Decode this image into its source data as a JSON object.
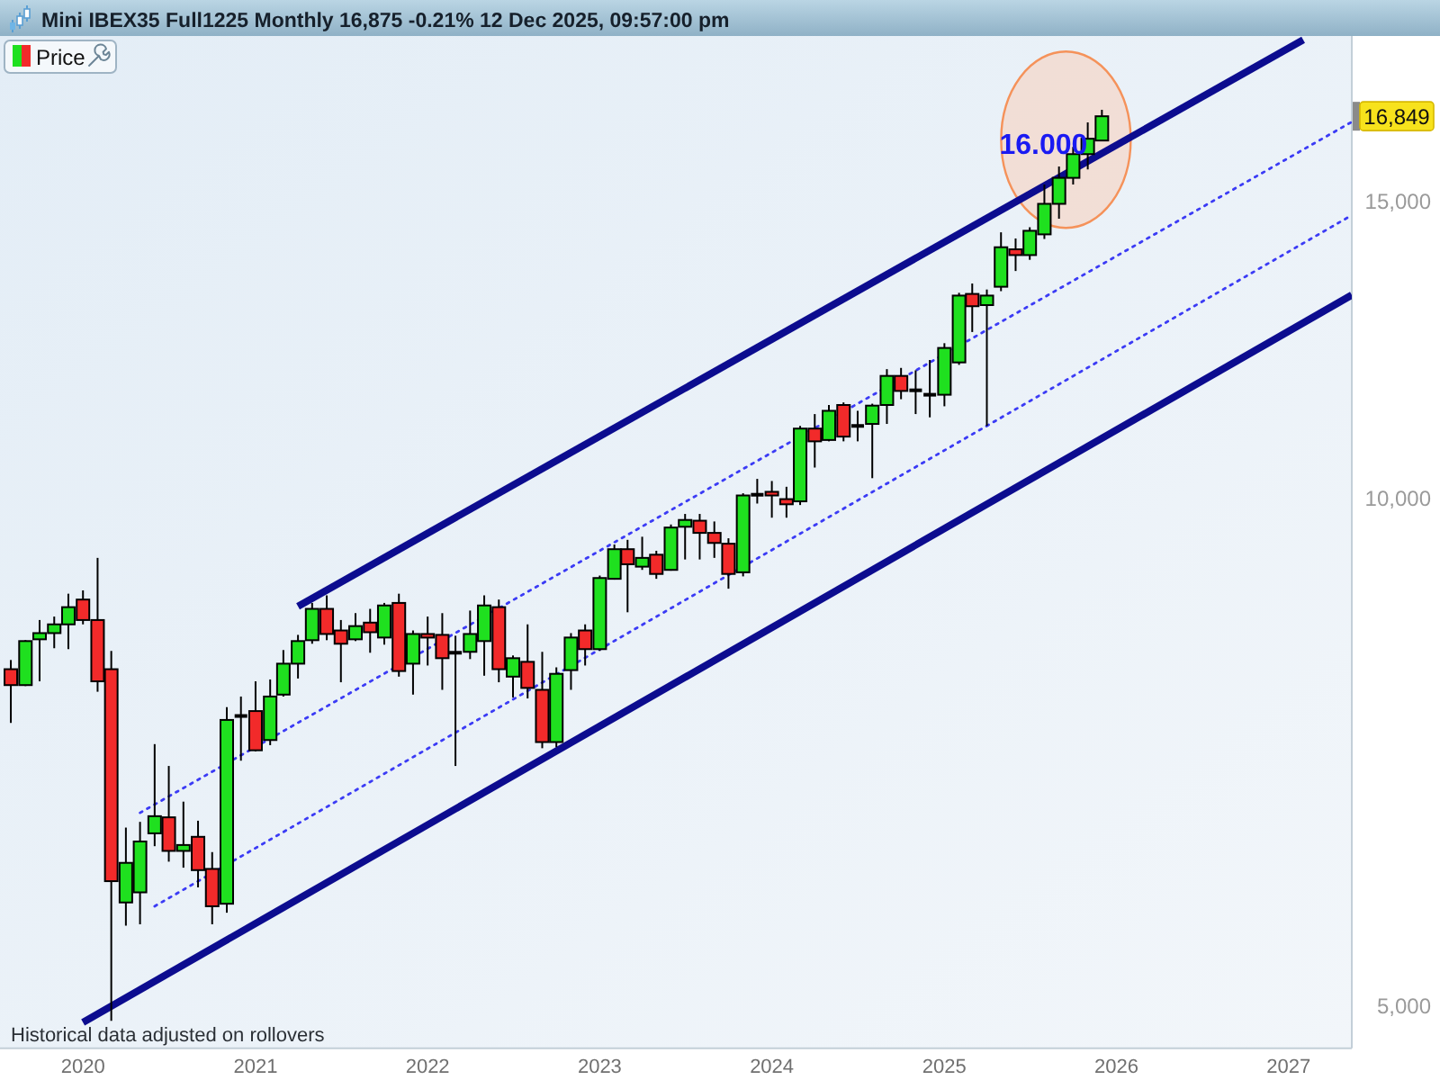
{
  "chart_data": {
    "type": "candlestick",
    "title": "Mini IBEX35 Full1225 Monthly 16,875 -0.21% 12 Dec 2025, 09:57:00 pm",
    "x": [
      "2019-08",
      "2019-09",
      "2019-10",
      "2019-11",
      "2019-12",
      "2020-01",
      "2020-02",
      "2020-03",
      "2020-04",
      "2020-05",
      "2020-06",
      "2020-07",
      "2020-08",
      "2020-09",
      "2020-10",
      "2020-11",
      "2020-12",
      "2021-01",
      "2021-02",
      "2021-03",
      "2021-04",
      "2021-05",
      "2021-06",
      "2021-07",
      "2021-08",
      "2021-09",
      "2021-10",
      "2021-11",
      "2021-12",
      "2022-01",
      "2022-02",
      "2022-03",
      "2022-04",
      "2022-05",
      "2022-06",
      "2022-07",
      "2022-08",
      "2022-09",
      "2022-10",
      "2022-11",
      "2022-12",
      "2023-01",
      "2023-02",
      "2023-03",
      "2023-04",
      "2023-05",
      "2023-06",
      "2023-07",
      "2023-08",
      "2023-09",
      "2023-10",
      "2023-11",
      "2023-12",
      "2024-01",
      "2024-02",
      "2024-03",
      "2024-04",
      "2024-05",
      "2024-06",
      "2024-07",
      "2024-08",
      "2024-09",
      "2024-10",
      "2024-11",
      "2024-12",
      "2025-01",
      "2025-02",
      "2025-03",
      "2025-04",
      "2025-05",
      "2025-06",
      "2025-07",
      "2025-08",
      "2025-09",
      "2025-10",
      "2025-11",
      "2025-12"
    ],
    "series": [
      {
        "name": "Price",
        "ohlc": [
          [
            7920,
            8020,
            7360,
            7750
          ],
          [
            7750,
            8240,
            7740,
            8230
          ],
          [
            8250,
            8470,
            7790,
            8320
          ],
          [
            8320,
            8510,
            8150,
            8420
          ],
          [
            8420,
            8780,
            8140,
            8620
          ],
          [
            8710,
            8820,
            8420,
            8470
          ],
          [
            8470,
            9220,
            7680,
            7790
          ],
          [
            7920,
            8120,
            4900,
            5930
          ],
          [
            5760,
            6380,
            5580,
            6080
          ],
          [
            5840,
            6430,
            5590,
            6260
          ],
          [
            6330,
            7150,
            6220,
            6480
          ],
          [
            6470,
            6940,
            6090,
            6180
          ],
          [
            6180,
            6610,
            6040,
            6230
          ],
          [
            6300,
            6440,
            5880,
            6020
          ],
          [
            6030,
            6170,
            5590,
            5730
          ],
          [
            5750,
            7520,
            5680,
            7390
          ],
          [
            7430,
            7630,
            6990,
            7430
          ],
          [
            7480,
            7790,
            7080,
            7090
          ],
          [
            7190,
            7810,
            7140,
            7630
          ],
          [
            7650,
            8130,
            7630,
            7980
          ],
          [
            7980,
            8300,
            7820,
            8230
          ],
          [
            8240,
            8670,
            8200,
            8600
          ],
          [
            8600,
            8760,
            8240,
            8310
          ],
          [
            8350,
            8470,
            7780,
            8200
          ],
          [
            8250,
            8550,
            8230,
            8400
          ],
          [
            8440,
            8600,
            8100,
            8330
          ],
          [
            8270,
            8670,
            8190,
            8640
          ],
          [
            8670,
            8780,
            7840,
            7900
          ],
          [
            7980,
            8350,
            7650,
            8310
          ],
          [
            8310,
            8510,
            7960,
            8270
          ],
          [
            8300,
            8550,
            7700,
            8040
          ],
          [
            8100,
            8290,
            6940,
            8100
          ],
          [
            8110,
            8580,
            8030,
            8310
          ],
          [
            8230,
            8760,
            7850,
            8640
          ],
          [
            8620,
            8710,
            7780,
            7920
          ],
          [
            7840,
            8070,
            7620,
            8040
          ],
          [
            8000,
            8420,
            7610,
            7720
          ],
          [
            7700,
            8110,
            7110,
            7170
          ],
          [
            7170,
            7940,
            7120,
            7870
          ],
          [
            7910,
            8320,
            7700,
            8270
          ],
          [
            8350,
            8420,
            7960,
            8140
          ],
          [
            8140,
            9000,
            8120,
            8970
          ],
          [
            8960,
            9390,
            8950,
            9330
          ],
          [
            9330,
            9450,
            8560,
            9140
          ],
          [
            9110,
            9490,
            9070,
            9220
          ],
          [
            9260,
            9310,
            8960,
            9020
          ],
          [
            9070,
            9650,
            9060,
            9610
          ],
          [
            9620,
            9790,
            9200,
            9710
          ],
          [
            9700,
            9790,
            9200,
            9540
          ],
          [
            9540,
            9690,
            9220,
            9410
          ],
          [
            9400,
            9470,
            8840,
            9020
          ],
          [
            9040,
            10070,
            8990,
            10040
          ],
          [
            10050,
            10270,
            9930,
            10050
          ],
          [
            10090,
            10240,
            9740,
            10040
          ],
          [
            9990,
            10160,
            9740,
            9920
          ],
          [
            9960,
            11040,
            9910,
            11000
          ],
          [
            11000,
            11220,
            10430,
            10810
          ],
          [
            10830,
            11360,
            10810,
            11270
          ],
          [
            11360,
            11400,
            10810,
            10880
          ],
          [
            11040,
            11270,
            10810,
            11040
          ],
          [
            11070,
            11380,
            10280,
            11350
          ],
          [
            11360,
            11930,
            11070,
            11820
          ],
          [
            11820,
            11950,
            11450,
            11580
          ],
          [
            11590,
            11910,
            11220,
            11590
          ],
          [
            11520,
            12080,
            11170,
            11520
          ],
          [
            11520,
            12360,
            11340,
            12280
          ],
          [
            12040,
            13240,
            12000,
            13190
          ],
          [
            13220,
            13410,
            12550,
            13000
          ],
          [
            13020,
            13300,
            11040,
            13190
          ],
          [
            13350,
            14380,
            13270,
            14090
          ],
          [
            14050,
            14260,
            13640,
            13940
          ],
          [
            13940,
            14480,
            13850,
            14410
          ],
          [
            14340,
            15350,
            14250,
            14950
          ],
          [
            14950,
            15730,
            14650,
            15490
          ],
          [
            15490,
            16160,
            15350,
            16000
          ],
          [
            16000,
            16710,
            15670,
            16340
          ],
          [
            16300,
            17000,
            16300,
            16849
          ]
        ],
        "colors": [
          "#f22a2a",
          "#1fe01f",
          "#1fe01f",
          "#1fe01f",
          "#1fe01f",
          "#f22a2a",
          "#f22a2a",
          "#f22a2a",
          "#1fe01f",
          "#1fe01f",
          "#1fe01f",
          "#f22a2a",
          "#1fe01f",
          "#f22a2a",
          "#f22a2a",
          "#1fe01f",
          "#000000",
          "#f22a2a",
          "#1fe01f",
          "#1fe01f",
          "#1fe01f",
          "#1fe01f",
          "#f22a2a",
          "#f22a2a",
          "#1fe01f",
          "#f22a2a",
          "#1fe01f",
          "#f22a2a",
          "#1fe01f",
          "#f22a2a",
          "#f22a2a",
          "#000000",
          "#1fe01f",
          "#1fe01f",
          "#f22a2a",
          "#1fe01f",
          "#f22a2a",
          "#f22a2a",
          "#1fe01f",
          "#1fe01f",
          "#f22a2a",
          "#1fe01f",
          "#1fe01f",
          "#f22a2a",
          "#1fe01f",
          "#f22a2a",
          "#1fe01f",
          "#1fe01f",
          "#f22a2a",
          "#f22a2a",
          "#f22a2a",
          "#1fe01f",
          "#000000",
          "#f22a2a",
          "#f22a2a",
          "#1fe01f",
          "#f22a2a",
          "#1fe01f",
          "#f22a2a",
          "#000000",
          "#1fe01f",
          "#1fe01f",
          "#f22a2a",
          "#000000",
          "#000000",
          "#1fe01f",
          "#1fe01f",
          "#f22a2a",
          "#1fe01f",
          "#1fe01f",
          "#f22a2a",
          "#1fe01f",
          "#1fe01f",
          "#1fe01f",
          "#1fe01f",
          "#1fe01f",
          "#1fe01f"
        ]
      },
      {
        "type": "line",
        "x": [
          "2021-04",
          "2027-02"
        ],
        "values": [
          8630,
          18700
        ],
        "color": "#0c0c8f",
        "line_style": "solid"
      },
      {
        "type": "line",
        "x": [
          "2020-01",
          "2027-05-15"
        ],
        "values": [
          4890,
          13200
        ],
        "color": "#0c0c8f",
        "line_style": "solid"
      },
      {
        "type": "line",
        "x": [
          "2020-05",
          "2027-05-15"
        ],
        "values": [
          6510,
          16720
        ],
        "color": "#3b3bf5",
        "line_style": "dotted"
      },
      {
        "type": "line",
        "x": [
          "2020-06",
          "2027-05-15"
        ],
        "values": [
          5730,
          14720
        ],
        "color": "#3b3bf5",
        "line_style": "dotted"
      }
    ],
    "xlim": [
      "2019-07-09",
      "2027-05-15"
    ],
    "xticks": [
      {
        "value": "2020-01",
        "label": "2020"
      },
      {
        "value": "2021-01",
        "label": "2021"
      },
      {
        "value": "2022-01",
        "label": "2022"
      },
      {
        "value": "2023-01",
        "label": "2023"
      },
      {
        "value": "2024-01",
        "label": "2024"
      },
      {
        "value": "2025-01",
        "label": "2025"
      },
      {
        "value": "2026-01",
        "label": "2026"
      },
      {
        "value": "2027-01",
        "label": "2027"
      }
    ],
    "ylim": [
      4720,
      18800
    ],
    "yticks": [
      {
        "value": 5000,
        "label": "5,000"
      },
      {
        "value": 10000,
        "label": "10,000"
      },
      {
        "value": 15000,
        "label": "15,000"
      },
      {
        "value": 16849,
        "label": "16,849"
      }
    ],
    "log": true,
    "legend": "top left",
    "annotations": [
      {
        "text": "16.000",
        "x": "2025-10",
        "y": 16000
      },
      "Historical data adjusted on rollovers"
    ]
  }
}
